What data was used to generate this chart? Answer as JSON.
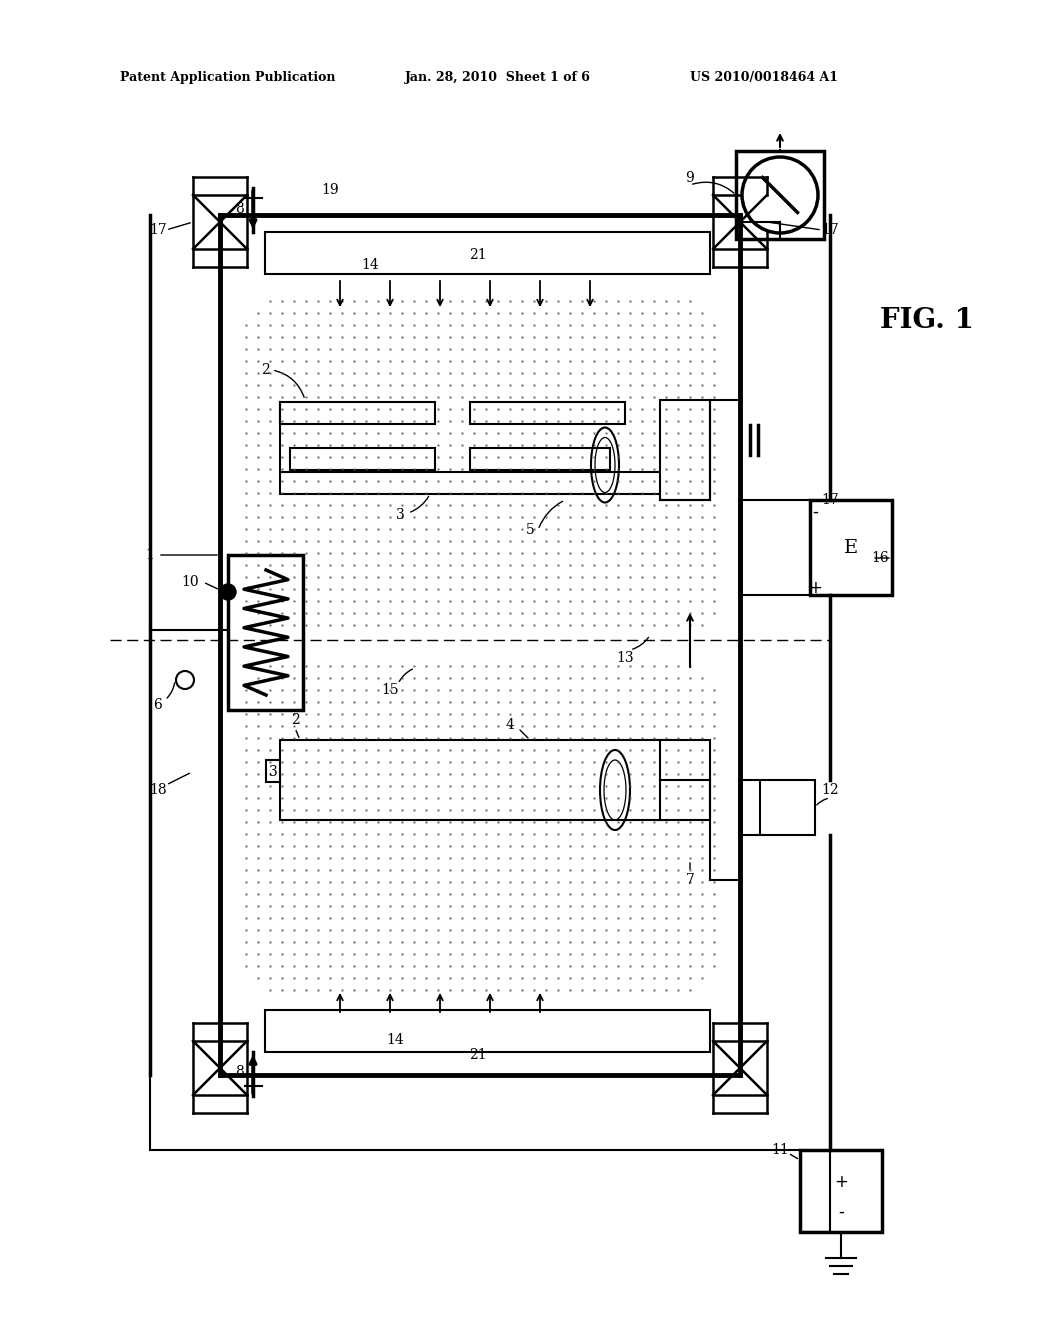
{
  "bg_color": "#ffffff",
  "line_color": "#000000",
  "header_text_left": "Patent Application Publication",
  "header_text_mid": "Jan. 28, 2010  Sheet 1 of 6",
  "header_text_right": "US 2010/0018464 A1",
  "fig_label": "FIG. 1"
}
